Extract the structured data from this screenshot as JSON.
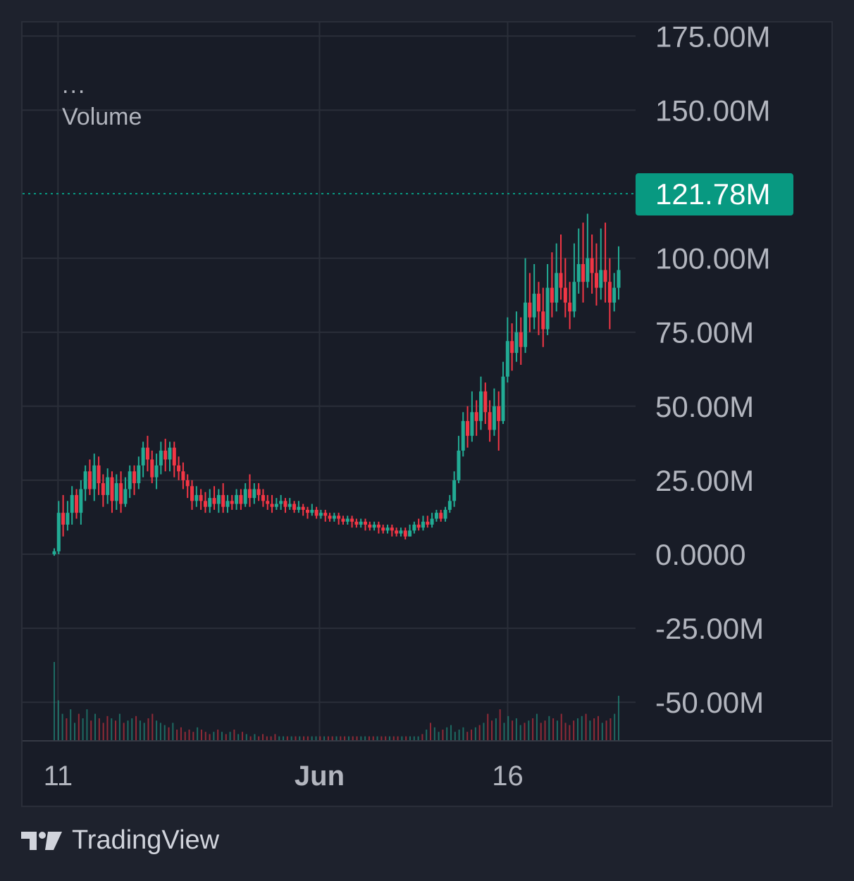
{
  "legend": {
    "dots": "...",
    "title": "Volume"
  },
  "brand": {
    "name": "TradingView"
  },
  "price_label": {
    "value": "121.78M",
    "color": "#089981"
  },
  "colors": {
    "up": "#22ab94",
    "down": "#f23645",
    "grid": "#2a2e39",
    "text": "#b2b5be"
  },
  "chart_data": {
    "type": "candlestick",
    "title": "Volume",
    "ylim": [
      -60,
      178
    ],
    "y_unit": "M",
    "y_ticks": [
      "175.00M",
      "150.00M",
      "100.00M",
      "75.00M",
      "50.00M",
      "25.00M",
      "0.0000",
      "-25.00M",
      "-50.00M"
    ],
    "y_tick_values": [
      175,
      150,
      100,
      75,
      50,
      25,
      0,
      -25,
      -50
    ],
    "x_ticks": [
      "11",
      "Jun",
      "16"
    ],
    "x_tick_index": [
      2,
      141,
      241
    ],
    "last_value": 121.78,
    "candles_ohlc": [
      [
        0,
        1,
        -0.5,
        2
      ],
      [
        1,
        14,
        0,
        18
      ],
      [
        14,
        10,
        6,
        20
      ],
      [
        10,
        14,
        8,
        18
      ],
      [
        14,
        20,
        10,
        23
      ],
      [
        20,
        14,
        12,
        22
      ],
      [
        14,
        22,
        10,
        25
      ],
      [
        22,
        28,
        18,
        30
      ],
      [
        28,
        22,
        20,
        32
      ],
      [
        22,
        30,
        18,
        34
      ],
      [
        30,
        24,
        20,
        33
      ],
      [
        24,
        20,
        16,
        27
      ],
      [
        20,
        26,
        17,
        29
      ],
      [
        26,
        18,
        14,
        28
      ],
      [
        18,
        24,
        15,
        27
      ],
      [
        24,
        17,
        14,
        28
      ],
      [
        17,
        22,
        16,
        26
      ],
      [
        22,
        28,
        19,
        30
      ],
      [
        28,
        24,
        20,
        30
      ],
      [
        24,
        30,
        22,
        33
      ],
      [
        30,
        36,
        26,
        38
      ],
      [
        36,
        32,
        28,
        40
      ],
      [
        32,
        26,
        24,
        35
      ],
      [
        26,
        30,
        22,
        34
      ],
      [
        30,
        35,
        27,
        38
      ],
      [
        35,
        32,
        28,
        39
      ],
      [
        32,
        36,
        28,
        38
      ],
      [
        36,
        30,
        26,
        38
      ],
      [
        30,
        28,
        25,
        33
      ],
      [
        28,
        25,
        22,
        31
      ],
      [
        25,
        23,
        19,
        27
      ],
      [
        23,
        18,
        15,
        25
      ],
      [
        18,
        20,
        16,
        23
      ],
      [
        20,
        18,
        15,
        22
      ],
      [
        18,
        16,
        14,
        21
      ],
      [
        16,
        19,
        14,
        22
      ],
      [
        19,
        17,
        15,
        23
      ],
      [
        17,
        20,
        14,
        22
      ],
      [
        20,
        16,
        14,
        24
      ],
      [
        16,
        18,
        14,
        20
      ],
      [
        18,
        17,
        15,
        20
      ],
      [
        17,
        20,
        15,
        22
      ],
      [
        20,
        17,
        15,
        22
      ],
      [
        17,
        22,
        16,
        24
      ],
      [
        22,
        19,
        16,
        27
      ],
      [
        19,
        22,
        17,
        24
      ],
      [
        22,
        20,
        18,
        24
      ],
      [
        20,
        18,
        16,
        22
      ],
      [
        18,
        17,
        15,
        20
      ],
      [
        17,
        16,
        14,
        20
      ],
      [
        16,
        17,
        15,
        19
      ],
      [
        17,
        18,
        15,
        20
      ],
      [
        18,
        16,
        14,
        19
      ],
      [
        16,
        17,
        15,
        19
      ],
      [
        17,
        15,
        14,
        18
      ],
      [
        15,
        16,
        14,
        18
      ],
      [
        16,
        15,
        13,
        17
      ],
      [
        15,
        14,
        12,
        16
      ],
      [
        14,
        15,
        13,
        17
      ],
      [
        15,
        13,
        12,
        16
      ],
      [
        13,
        14,
        12,
        15
      ],
      [
        14,
        13,
        11,
        15
      ],
      [
        13,
        12,
        11,
        14
      ],
      [
        12,
        13,
        11,
        14
      ],
      [
        13,
        12,
        10,
        14
      ],
      [
        12,
        11,
        10,
        13
      ],
      [
        11,
        12,
        10,
        13
      ],
      [
        12,
        11,
        9,
        13
      ],
      [
        11,
        10,
        9,
        12
      ],
      [
        10,
        11,
        9,
        12
      ],
      [
        11,
        10,
        8,
        12
      ],
      [
        10,
        9,
        8,
        11
      ],
      [
        9,
        10,
        8,
        11
      ],
      [
        10,
        9,
        7,
        11
      ],
      [
        9,
        8,
        7,
        10
      ],
      [
        8,
        9,
        7,
        10
      ],
      [
        9,
        8,
        6,
        10
      ],
      [
        8,
        7,
        6,
        9
      ],
      [
        7,
        8,
        6,
        9
      ],
      [
        8,
        6,
        5,
        9
      ],
      [
        6,
        8,
        6,
        10
      ],
      [
        8,
        10,
        7,
        11
      ],
      [
        10,
        9,
        8,
        12
      ],
      [
        9,
        11,
        8,
        13
      ],
      [
        11,
        10,
        9,
        13
      ],
      [
        10,
        12,
        9,
        14
      ],
      [
        12,
        14,
        11,
        15
      ],
      [
        14,
        12,
        11,
        15
      ],
      [
        12,
        15,
        11,
        16
      ],
      [
        15,
        18,
        14,
        20
      ],
      [
        18,
        25,
        16,
        28
      ],
      [
        25,
        35,
        24,
        40
      ],
      [
        35,
        45,
        33,
        48
      ],
      [
        45,
        40,
        36,
        50
      ],
      [
        40,
        48,
        38,
        55
      ],
      [
        48,
        45,
        40,
        52
      ],
      [
        45,
        55,
        42,
        60
      ],
      [
        55,
        48,
        44,
        58
      ],
      [
        48,
        42,
        38,
        52
      ],
      [
        42,
        50,
        40,
        56
      ],
      [
        50,
        45,
        35,
        55
      ],
      [
        45,
        60,
        44,
        65
      ],
      [
        60,
        72,
        58,
        80
      ],
      [
        72,
        68,
        62,
        78
      ],
      [
        68,
        75,
        65,
        82
      ],
      [
        75,
        70,
        64,
        80
      ],
      [
        70,
        85,
        68,
        100
      ],
      [
        85,
        80,
        75,
        95
      ],
      [
        80,
        88,
        76,
        98
      ],
      [
        88,
        82,
        74,
        92
      ],
      [
        82,
        76,
        70,
        90
      ],
      [
        76,
        90,
        74,
        98
      ],
      [
        90,
        85,
        80,
        102
      ],
      [
        85,
        95,
        82,
        105
      ],
      [
        95,
        90,
        86,
        108
      ],
      [
        90,
        85,
        80,
        100
      ],
      [
        85,
        82,
        76,
        92
      ],
      [
        82,
        92,
        80,
        105
      ],
      [
        92,
        98,
        88,
        110
      ],
      [
        98,
        92,
        85,
        112
      ],
      [
        92,
        100,
        90,
        115
      ],
      [
        100,
        95,
        88,
        108
      ],
      [
        95,
        90,
        84,
        105
      ],
      [
        90,
        96,
        86,
        110
      ],
      [
        96,
        92,
        85,
        112
      ],
      [
        92,
        85,
        76,
        100
      ],
      [
        85,
        90,
        82,
        95
      ],
      [
        90,
        96,
        86,
        104
      ]
    ],
    "volumes": [
      35,
      18,
      12,
      10,
      14,
      8,
      12,
      10,
      14,
      9,
      12,
      10,
      8,
      11,
      10,
      9,
      12,
      8,
      9,
      10,
      11,
      9,
      8,
      10,
      12,
      9,
      8,
      7,
      6,
      8,
      5,
      6,
      4,
      5,
      4,
      6,
      5,
      4,
      3,
      4,
      5,
      4,
      3,
      4,
      5,
      3,
      4,
      3,
      2,
      3,
      2,
      3,
      2,
      2,
      3,
      2,
      2,
      2,
      2,
      2,
      2,
      2,
      2,
      2,
      2,
      2,
      2,
      2,
      2,
      2,
      2,
      2,
      2,
      2,
      2,
      2,
      2,
      2,
      2,
      2,
      2,
      2,
      2,
      2,
      2,
      2,
      2,
      2,
      2,
      2,
      3,
      5,
      8,
      6,
      4,
      5,
      6,
      7,
      4,
      5,
      6,
      4,
      5,
      6,
      7,
      8,
      12,
      9,
      10,
      14,
      8,
      11,
      9,
      10,
      7,
      8,
      9,
      10,
      12,
      8,
      9,
      11,
      10,
      9,
      12,
      8,
      7,
      9,
      10,
      11,
      12,
      9,
      10,
      11,
      8,
      9,
      10,
      12,
      20
    ]
  }
}
